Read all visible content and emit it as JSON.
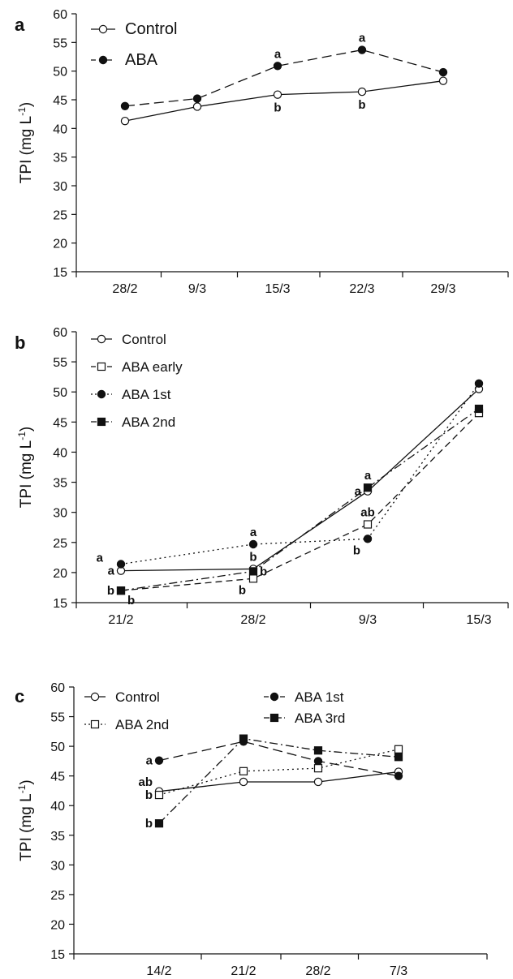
{
  "chart_data": [
    {
      "type": "line",
      "panel_label": "a",
      "ylabel": "TPI (mg L",
      "ylabel_sup": "-1",
      "ylabel_close": ")",
      "ylim": [
        15,
        60
      ],
      "yticks": [
        15,
        20,
        25,
        30,
        35,
        40,
        45,
        50,
        55,
        60
      ],
      "categories": [
        "28/2",
        "9/3",
        "15/3",
        "22/3",
        "29/3"
      ],
      "legend_placement": "top-left",
      "grid": false,
      "series": [
        {
          "name": "Control",
          "marker": "circle-open",
          "dash": "solid",
          "values": [
            41.3,
            43.8,
            45.9,
            46.4,
            48.3
          ]
        },
        {
          "name": "ABA",
          "marker": "circle-filled",
          "dash": "long-dash",
          "values": [
            43.9,
            45.2,
            50.9,
            53.7,
            49.8
          ]
        }
      ],
      "annotations": [
        {
          "text": "a",
          "x": "15/3",
          "y": 50.9,
          "pos": "above"
        },
        {
          "text": "b",
          "x": "15/3",
          "y": 45.9,
          "pos": "below"
        },
        {
          "text": "a",
          "x": "22/3",
          "y": 53.7,
          "pos": "above"
        },
        {
          "text": "b",
          "x": "22/3",
          "y": 46.4,
          "pos": "below"
        }
      ]
    },
    {
      "type": "line",
      "panel_label": "b",
      "ylabel": "TPI (mg L",
      "ylabel_sup": "-1",
      "ylabel_close": ")",
      "ylim": [
        15,
        60
      ],
      "yticks": [
        15,
        20,
        25,
        30,
        35,
        40,
        45,
        50,
        55,
        60
      ],
      "categories": [
        "21/2",
        "28/2",
        "9/3",
        "15/3"
      ],
      "legend_placement": "top-left",
      "grid": false,
      "series": [
        {
          "name": "Control",
          "marker": "circle-open",
          "dash": "solid",
          "values": [
            20.3,
            20.6,
            33.5,
            50.5
          ]
        },
        {
          "name": "ABA early",
          "marker": "square-open",
          "dash": "dash",
          "values": [
            17.0,
            19.0,
            28.0,
            46.5
          ]
        },
        {
          "name": "ABA 1st",
          "marker": "circle-filled",
          "dash": "dot",
          "values": [
            21.4,
            24.7,
            25.6,
            51.4
          ]
        },
        {
          "name": "ABA 2nd",
          "marker": "square-filled",
          "dash": "dash-dot",
          "values": [
            17.0,
            20.2,
            34.1,
            47.2
          ]
        }
      ],
      "annotations": [
        {
          "text": "a",
          "x": "21/2",
          "y": 22.5,
          "pos": "left",
          "shift": 2
        },
        {
          "text": "a",
          "x": "21/2",
          "y": 20.3,
          "pos": "left",
          "shift": 1
        },
        {
          "text": "b",
          "x": "21/2",
          "y": 17.0,
          "pos": "left",
          "shift": 1
        },
        {
          "text": "b",
          "x": "21/2",
          "y": 17.0,
          "pos": "below-right"
        },
        {
          "text": "a",
          "x": "28/2",
          "y": 24.7,
          "pos": "above"
        },
        {
          "text": "b",
          "x": "28/2",
          "y": 20.6,
          "pos": "above"
        },
        {
          "text": "b",
          "x": "28/2",
          "y": 19.0,
          "pos": "below-left"
        },
        {
          "text": "b",
          "x": "28/2",
          "y": 20.2,
          "pos": "right"
        },
        {
          "text": "a",
          "x": "9/3",
          "y": 34.1,
          "pos": "above"
        },
        {
          "text": "a",
          "x": "9/3",
          "y": 33.5,
          "pos": "left"
        },
        {
          "text": "ab",
          "x": "9/3",
          "y": 28.0,
          "pos": "above"
        },
        {
          "text": "b",
          "x": "9/3",
          "y": 25.6,
          "pos": "below-left"
        }
      ]
    },
    {
      "type": "line",
      "panel_label": "c",
      "ylabel": "TPI (mg L",
      "ylabel_sup": "-1",
      "ylabel_close": ")",
      "ylim": [
        15,
        60
      ],
      "yticks": [
        15,
        20,
        25,
        30,
        35,
        40,
        45,
        50,
        55,
        60
      ],
      "categories": [
        "14/2",
        "21/2",
        "28/2",
        "7/3"
      ],
      "legend_placement": "top",
      "grid": false,
      "series": [
        {
          "name": "Control",
          "marker": "circle-open",
          "dash": "solid",
          "values": [
            42.4,
            44.0,
            44.0,
            45.7
          ]
        },
        {
          "name": "ABA 1st",
          "marker": "circle-filled",
          "dash": "long-dash",
          "values": [
            47.6,
            50.8,
            47.5,
            45.0
          ]
        },
        {
          "name": "ABA 2nd",
          "marker": "square-open",
          "dash": "dot",
          "values": [
            41.8,
            45.8,
            46.3,
            49.5
          ]
        },
        {
          "name": "ABA 3rd",
          "marker": "square-filled",
          "dash": "dash-dot",
          "values": [
            37.0,
            51.3,
            49.3,
            48.2
          ]
        }
      ],
      "annotations": [
        {
          "text": "a",
          "x": "14/2",
          "y": 47.6,
          "pos": "left"
        },
        {
          "text": "ab",
          "x": "14/2",
          "y": 44.0,
          "pos": "left"
        },
        {
          "text": "b",
          "x": "14/2",
          "y": 41.8,
          "pos": "left"
        },
        {
          "text": "b",
          "x": "14/2",
          "y": 37.0,
          "pos": "left"
        }
      ]
    }
  ]
}
